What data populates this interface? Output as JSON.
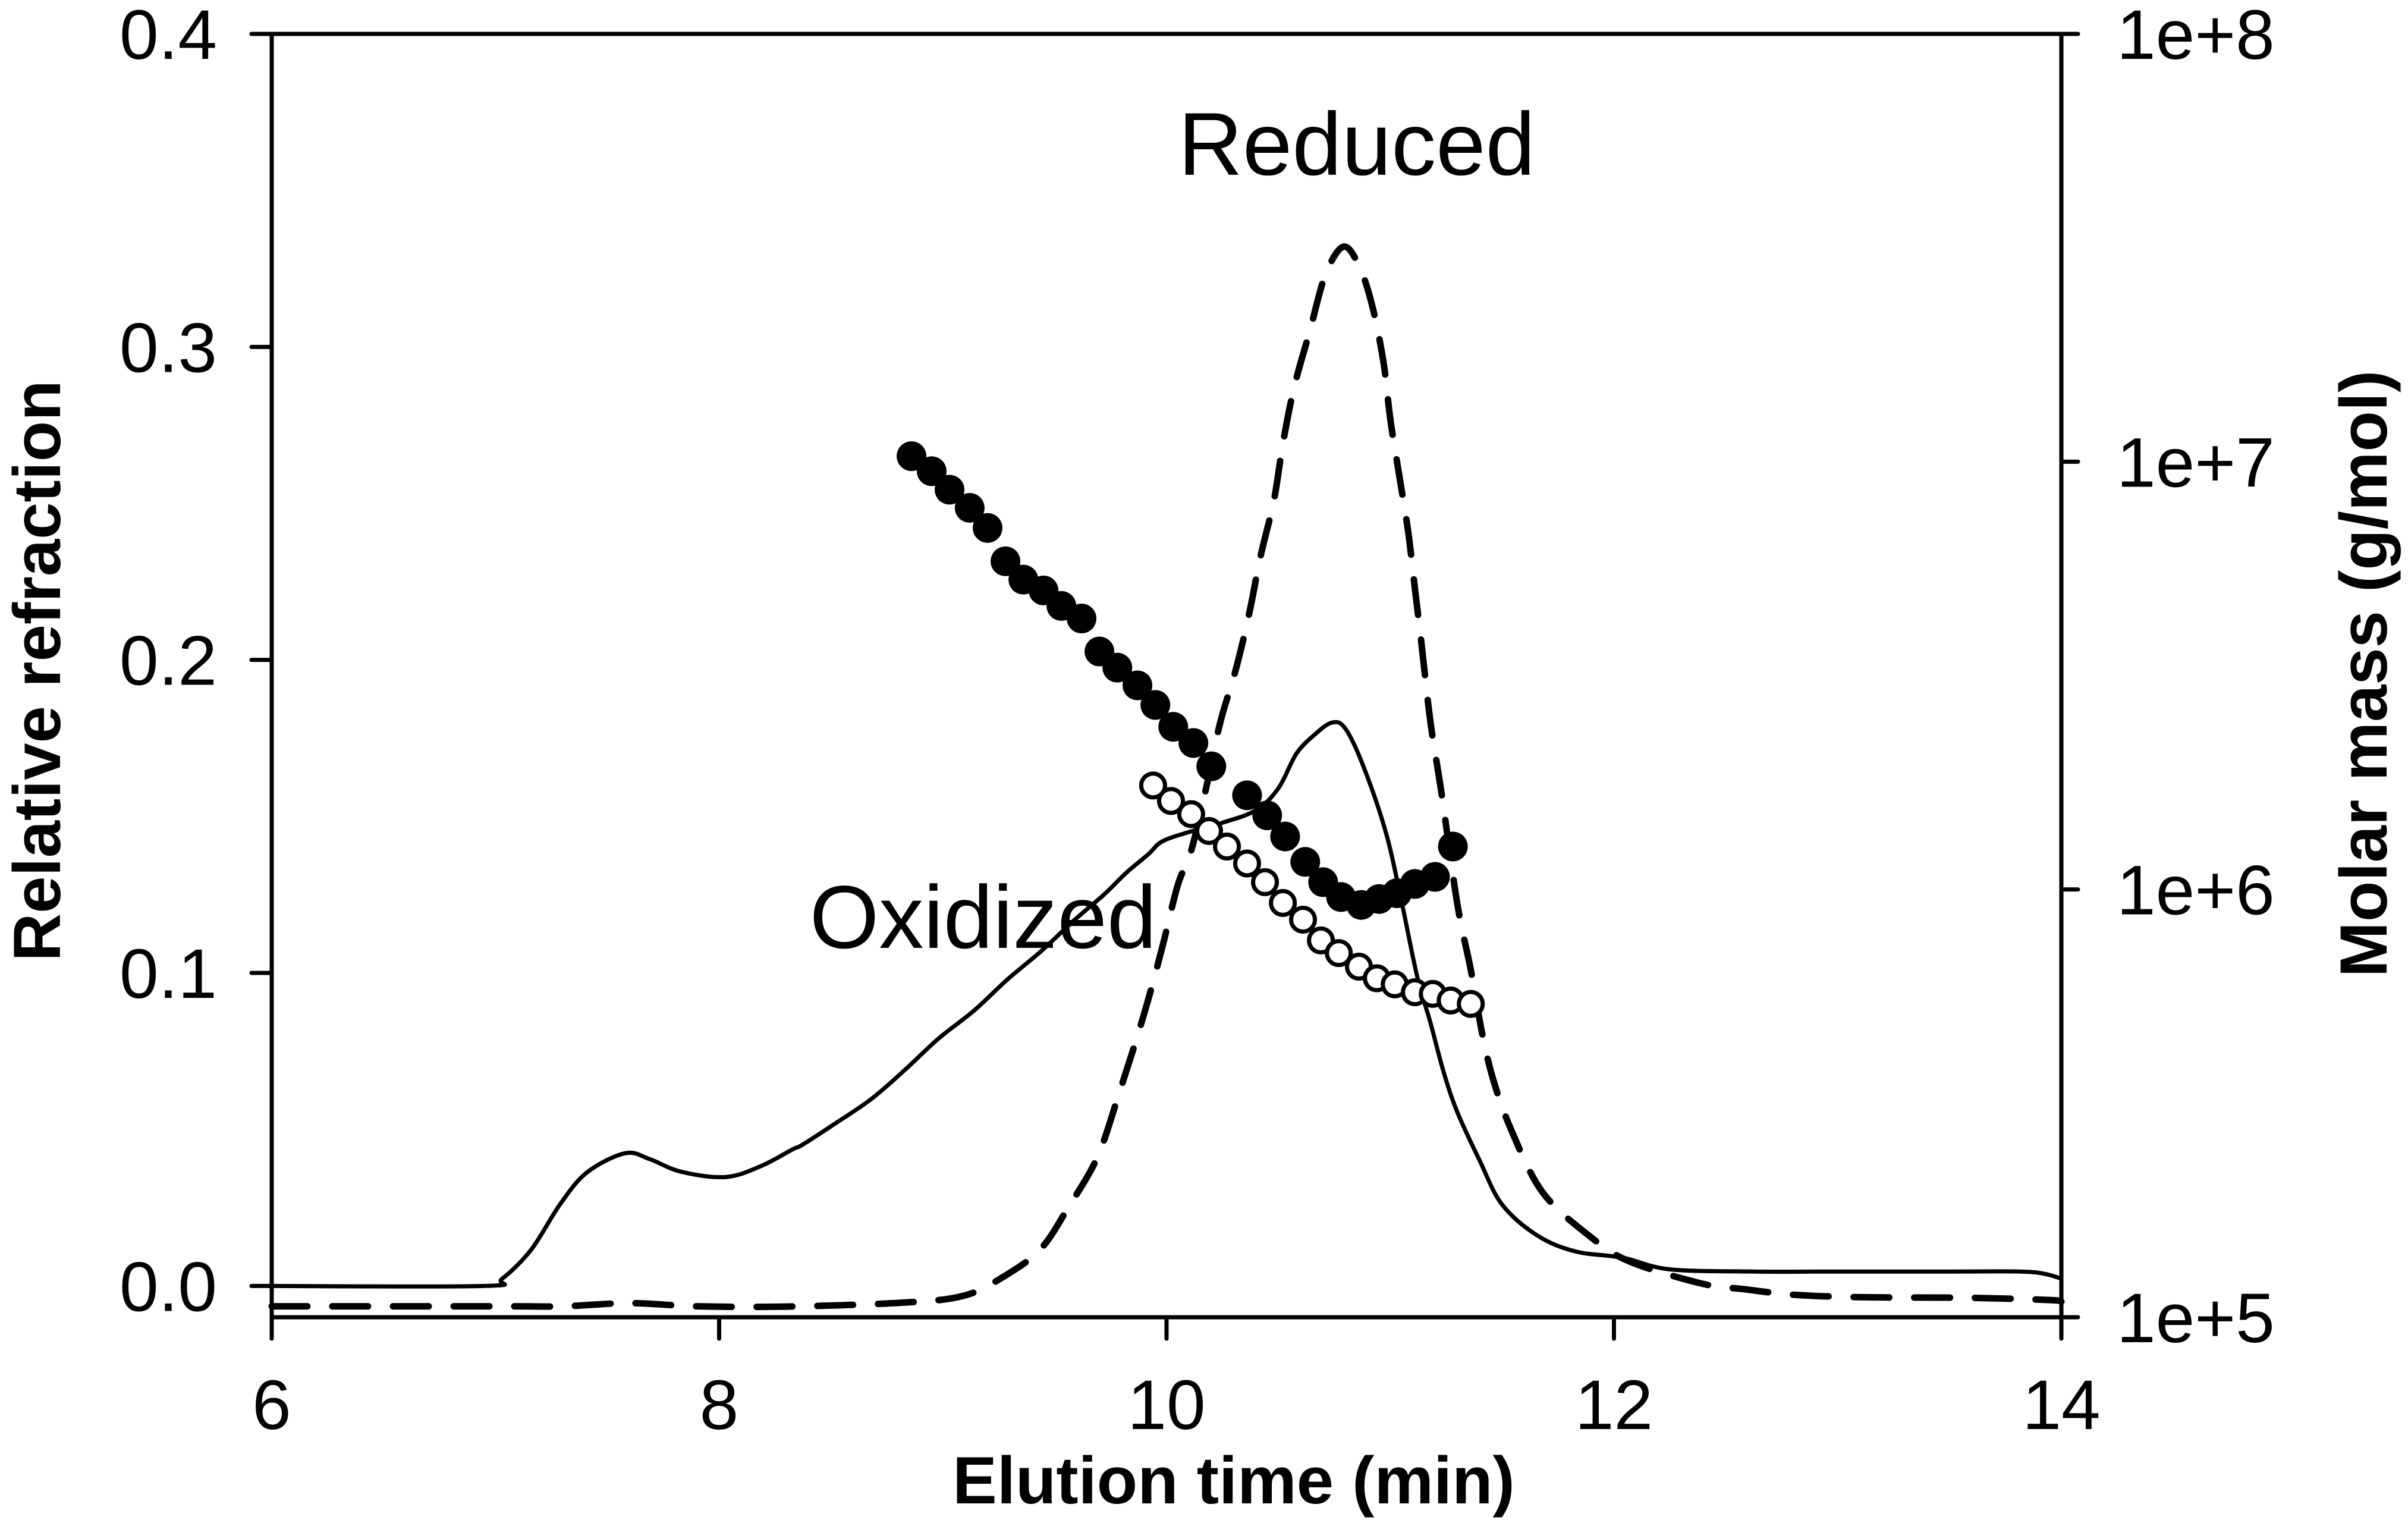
{
  "chart_data": {
    "type": "line",
    "title": "",
    "xlabel": "Elution time (min)",
    "ylabel": "Relative refraction",
    "y2label": "Molar mass (g/mol)",
    "xlim": [
      6,
      14
    ],
    "ylim": [
      -0.01,
      0.4
    ],
    "y2lim": [
      100000,
      100000000
    ],
    "y2scale": "log",
    "grid": false,
    "legend": "none",
    "x_ticks": [
      {
        "value": 6,
        "label": "6"
      },
      {
        "value": 8,
        "label": "8"
      },
      {
        "value": 10,
        "label": "10"
      },
      {
        "value": 12,
        "label": "12"
      },
      {
        "value": 14,
        "label": "14"
      }
    ],
    "y_ticks": [
      {
        "value": 0.0,
        "label": "0.0"
      },
      {
        "value": 0.1,
        "label": "0.1"
      },
      {
        "value": 0.2,
        "label": "0.2"
      },
      {
        "value": 0.3,
        "label": "0.3"
      },
      {
        "value": 0.4,
        "label": "0.4"
      }
    ],
    "y2_ticks": [
      {
        "value": 100000,
        "label": "1e+5"
      },
      {
        "value": 1000000,
        "label": "1e+6"
      },
      {
        "value": 10000000,
        "label": "1e+7"
      },
      {
        "value": 100000000,
        "label": "1e+8"
      }
    ],
    "annotations": [
      {
        "text": "Reduced",
        "x": 10.85,
        "y": 0.355,
        "axis": "left"
      },
      {
        "text": "Oxidized",
        "x": 9.18,
        "y": 0.108,
        "axis": "left"
      }
    ],
    "series": [
      {
        "name": "Oxidized (refractive index)",
        "style": "solid",
        "axis": "left",
        "x": [
          6.0,
          6.95,
          7.03,
          7.16,
          7.29,
          7.41,
          7.58,
          7.69,
          7.83,
          8.03,
          8.19,
          8.33,
          8.37,
          8.5,
          8.68,
          8.83,
          8.98,
          9.14,
          9.29,
          9.44,
          9.59,
          9.72,
          9.82,
          9.92,
          9.98,
          10.1,
          10.25,
          10.4,
          10.5,
          10.58,
          10.66,
          10.74,
          10.8,
          10.88,
          10.98,
          11.05,
          11.12,
          11.18,
          11.24,
          11.3,
          11.4,
          11.5,
          11.66,
          11.83,
          12.04,
          12.25,
          12.63,
          13.0,
          13.5,
          13.82,
          13.93,
          14.0
        ],
        "y": [
          0.0,
          0.0,
          0.0023,
          0.0116,
          0.0262,
          0.0363,
          0.0424,
          0.0405,
          0.0365,
          0.0348,
          0.0384,
          0.0437,
          0.045,
          0.051,
          0.0597,
          0.069,
          0.079,
          0.088,
          0.098,
          0.107,
          0.117,
          0.125,
          0.132,
          0.138,
          0.142,
          0.145,
          0.148,
          0.152,
          0.159,
          0.17,
          0.176,
          0.18,
          0.178,
          0.166,
          0.145,
          0.123,
          0.099,
          0.084,
          0.068,
          0.0555,
          0.04,
          0.026,
          0.016,
          0.011,
          0.009,
          0.0053,
          0.0046,
          0.0046,
          0.0046,
          0.0046,
          0.0038,
          0.0023
        ]
      },
      {
        "name": "Reduced (refractive index)",
        "style": "dashed",
        "axis": "left",
        "x": [
          6.0,
          7.0,
          7.3,
          7.6,
          7.9,
          8.3,
          8.83,
          9.1,
          9.29,
          9.44,
          9.56,
          9.69,
          9.79,
          9.9,
          9.98,
          10.05,
          10.11,
          10.18,
          10.24,
          10.31,
          10.37,
          10.42,
          10.48,
          10.52,
          10.57,
          10.64,
          10.71,
          10.79,
          10.86,
          10.92,
          10.97,
          11.0,
          11.04,
          11.08,
          11.11,
          11.14,
          11.18,
          11.23,
          11.3,
          11.36,
          11.41,
          11.46,
          11.54,
          11.68,
          11.89,
          12.07,
          12.39,
          12.59,
          12.8,
          13.1,
          13.6,
          13.95,
          14.0
        ],
        "y": [
          -0.0065,
          -0.0065,
          -0.0065,
          -0.0055,
          -0.0065,
          -0.0066,
          -0.0053,
          -0.003,
          0.0038,
          0.012,
          0.025,
          0.041,
          0.062,
          0.087,
          0.108,
          0.128,
          0.139,
          0.16,
          0.18,
          0.197,
          0.215,
          0.233,
          0.251,
          0.269,
          0.287,
          0.305,
          0.323,
          0.332,
          0.326,
          0.313,
          0.295,
          0.277,
          0.259,
          0.241,
          0.223,
          0.205,
          0.18,
          0.157,
          0.122,
          0.101,
          0.081,
          0.066,
          0.05,
          0.03,
          0.016,
          0.0078,
          0.0008,
          -0.0011,
          -0.0028,
          -0.0036,
          -0.0038,
          -0.0045,
          -0.005
        ]
      },
      {
        "name": "Reduced molar mass",
        "style": "filled-circle",
        "axis": "right",
        "x": [
          8.86,
          8.95,
          9.03,
          9.12,
          9.2,
          9.28,
          9.36,
          9.45,
          9.53,
          9.62,
          9.7,
          9.78,
          9.87,
          9.95,
          10.03,
          10.12,
          10.2,
          10.36,
          10.45,
          10.53,
          10.62,
          10.7,
          10.78,
          10.87,
          10.95,
          11.03,
          11.11,
          11.2,
          11.28
        ],
        "y": [
          10300000,
          9500000,
          8600000,
          7800000,
          7000000,
          5850000,
          5300000,
          5000000,
          4600000,
          4300000,
          3600000,
          3300000,
          3000000,
          2700000,
          2400000,
          2200000,
          1940000,
          1660000,
          1490000,
          1330000,
          1160000,
          1040000,
          960000,
          920000,
          950000,
          980000,
          1030000,
          1070000,
          1260000
        ]
      },
      {
        "name": "Oxidized molar mass",
        "style": "open-circle",
        "axis": "right",
        "x": [
          9.94,
          10.02,
          10.11,
          10.19,
          10.27,
          10.36,
          10.44,
          10.52,
          10.61,
          10.69,
          10.77,
          10.86,
          10.94,
          11.02,
          11.11,
          11.19,
          11.27,
          11.36
        ],
        "y": [
          1750000,
          1610000,
          1500000,
          1370000,
          1260000,
          1150000,
          1040000,
          930000,
          850000,
          760000,
          710000,
          660000,
          620000,
          600000,
          575000,
          570000,
          550000,
          540000
        ]
      }
    ]
  }
}
